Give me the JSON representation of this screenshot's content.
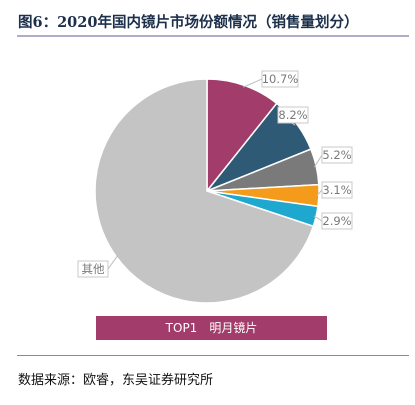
{
  "header": {
    "title": "图6：2020年国内镜片市场份额情况（销售量划分）"
  },
  "footer": {
    "source": "数据来源：欧睿，东吴证券研究所"
  },
  "chart_data": {
    "type": "pie",
    "title": "图6：2020年国内镜片市场份额情况（销售量划分）",
    "slices": [
      {
        "label": "",
        "value": 10.7,
        "text": "10.7%",
        "color": "#a23c6b"
      },
      {
        "label": "",
        "value": 8.2,
        "text": "8.2%",
        "color": "#2f5a75"
      },
      {
        "label": "",
        "value": 5.2,
        "text": "5.2%",
        "color": "#7a7a7a"
      },
      {
        "label": "",
        "value": 3.1,
        "text": "3.1%",
        "color": "#f59b1c"
      },
      {
        "label": "",
        "value": 2.9,
        "text": "2.9%",
        "color": "#1ea7cf"
      },
      {
        "label": "其他",
        "value": 69.9,
        "text": "其他",
        "color": "#c4c4c4"
      }
    ],
    "legend": {
      "label": "TOP1　明月镜片",
      "color": "#a23c6b",
      "position": "bottom"
    }
  }
}
